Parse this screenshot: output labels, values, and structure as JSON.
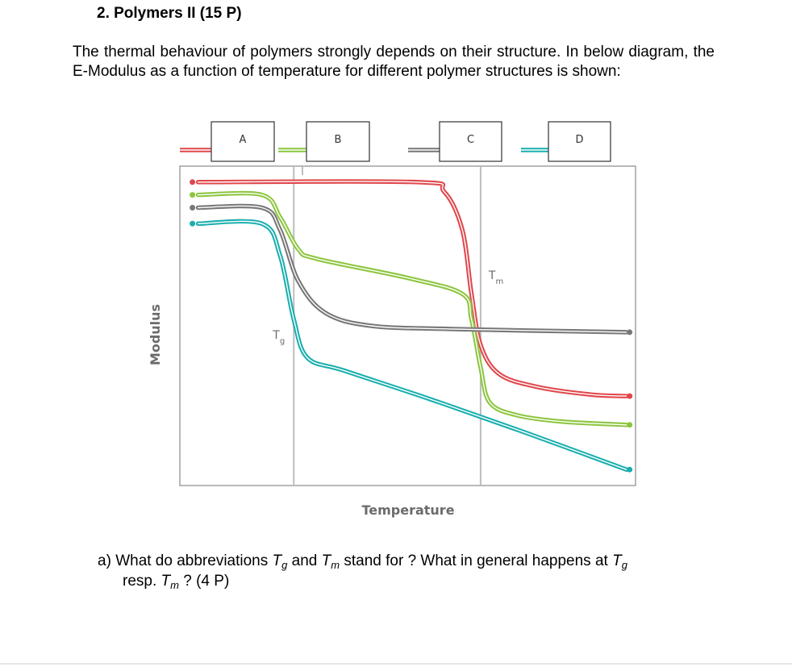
{
  "question": {
    "heading": "2. Polymers II (15 P)",
    "intro": "The thermal behaviour of polymers strongly depends on their structure. In below diagram, the E-Modulus as a function of temperature for different polymer structures is shown:",
    "part_a": {
      "label": "a)",
      "seg1": "What do abbreviations ",
      "tg_t": "T",
      "tg_sub": "g",
      "seg2": " and ",
      "tm_t": "T",
      "tm_sub": "m",
      "seg3": " stand for ? What in general happens at ",
      "tg2_t": "T",
      "tg2_sub": "g",
      "line2_pre": "resp. ",
      "tm2_t": "T",
      "tm2_sub": "m",
      "line2_post": " ? (4 P)"
    }
  },
  "chart_data": {
    "type": "line",
    "title": "",
    "xlabel": "Temperature",
    "ylabel": "Modulus",
    "x_units": "relative temperature (Tg = 0.25, Tm = 0.66)",
    "y_units": "relative modulus (0 = bottom, 1 = top)",
    "xlim": [
      0,
      1
    ],
    "ylim": [
      0,
      1
    ],
    "grid": false,
    "legend_position": "top",
    "legend_boxes": [
      "A",
      "B",
      "C",
      "D"
    ],
    "reference_lines": [
      {
        "name": "Tg",
        "x": 0.25,
        "label_t": "T",
        "label_sub": "g"
      },
      {
        "name": "Tm",
        "x": 0.66,
        "label_t": "T",
        "label_sub": "m"
      }
    ],
    "series": [
      {
        "color": "#e0474c",
        "legend_index": 0,
        "x": [
          0.04,
          0.52,
          0.58,
          0.62,
          0.64,
          0.66,
          0.7,
          0.78,
          0.9,
          0.98
        ],
        "y": [
          0.95,
          0.95,
          0.92,
          0.8,
          0.6,
          0.44,
          0.35,
          0.31,
          0.285,
          0.28
        ]
      },
      {
        "color": "#8cc63f",
        "legend_index": 1,
        "x": [
          0.04,
          0.18,
          0.22,
          0.26,
          0.3,
          0.5,
          0.62,
          0.64,
          0.66,
          0.68,
          0.74,
          0.84,
          0.98
        ],
        "y": [
          0.91,
          0.91,
          0.84,
          0.74,
          0.71,
          0.65,
          0.6,
          0.52,
          0.37,
          0.26,
          0.22,
          0.2,
          0.19
        ]
      },
      {
        "color": "#777777",
        "legend_index": 2,
        "x": [
          0.04,
          0.18,
          0.22,
          0.26,
          0.32,
          0.42,
          0.6,
          0.98
        ],
        "y": [
          0.87,
          0.87,
          0.8,
          0.64,
          0.54,
          0.5,
          0.49,
          0.48
        ]
      },
      {
        "color": "#1aaeae",
        "legend_index": 3,
        "x": [
          0.04,
          0.18,
          0.22,
          0.25,
          0.28,
          0.36,
          0.55,
          0.75,
          0.98
        ],
        "y": [
          0.82,
          0.82,
          0.72,
          0.52,
          0.4,
          0.36,
          0.27,
          0.17,
          0.05
        ]
      }
    ]
  },
  "colors": {
    "red": "#e0474c",
    "green": "#8cc63f",
    "gray": "#777777",
    "teal": "#1aaeae"
  }
}
